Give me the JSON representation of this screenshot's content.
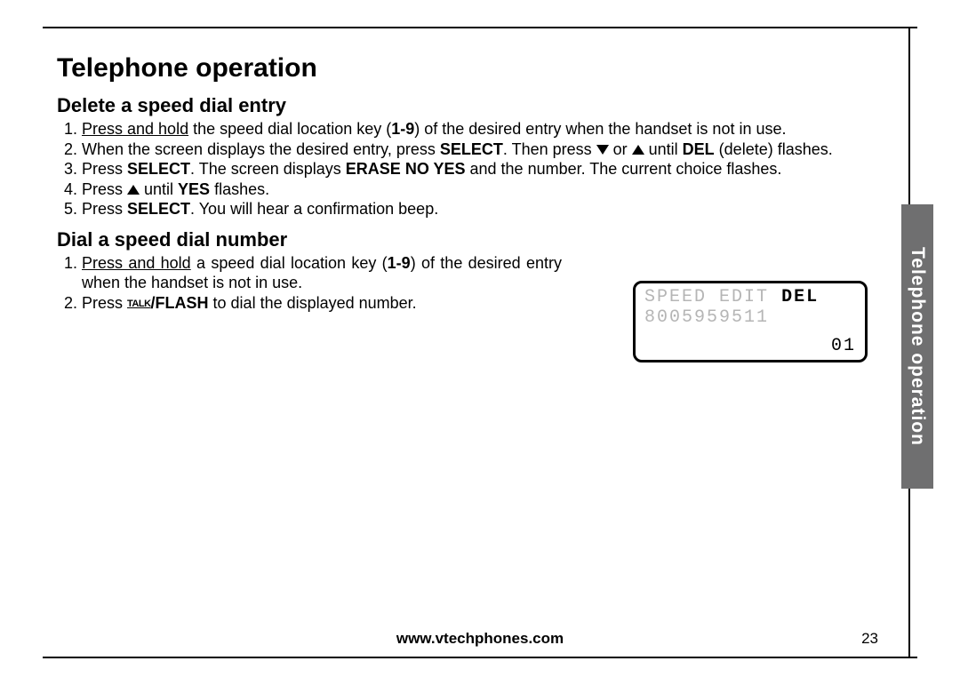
{
  "page": {
    "title": "Telephone operation",
    "side_tab": "Telephone operation",
    "footer_url": "www.vtechphones.com",
    "page_number": "23"
  },
  "section_delete": {
    "title": "Delete a speed dial entry",
    "step1_a": "Press and hold",
    "step1_b": " the speed dial location key (",
    "step1_c": "1-9",
    "step1_d": ") of the desired entry when the handset is not in use.",
    "step2_a": "When the screen displays the desired entry, press ",
    "step2_b": "SELECT",
    "step2_c": ". Then press ",
    "step2_d": " or ",
    "step2_e": " until ",
    "step2_f": "DEL",
    "step2_g": " (delete) flashes.",
    "step3_a": "Press ",
    "step3_b": "SELECT",
    "step3_c": ". The screen displays ",
    "step3_d": "ERASE NO YES",
    "step3_e": " and the number. The current choice flashes.",
    "step4_a": "Press ",
    "step4_b": "  until ",
    "step4_c": "YES",
    "step4_d": " flashes.",
    "step5_a": "Press ",
    "step5_b": "SELECT",
    "step5_c": ". You will hear a confirmation beep."
  },
  "section_dial": {
    "title": "Dial a speed dial number",
    "step1_a": "Press and hold",
    "step1_b": " a speed dial location key (",
    "step1_c": "1-9",
    "step1_d": ") of the desired entry when the handset is not in use.",
    "step2_a": "Press ",
    "step2_talk": "TALK",
    "step2_b": "/FLASH",
    "step2_c": " to dial the displayed number."
  },
  "lcd": {
    "menu_speed": "SPEED",
    "menu_edit": "EDIT",
    "menu_del": "DEL",
    "number": "8005959511",
    "index": "01",
    "border_color": "#000000",
    "faded_color": "#b5b5b5",
    "active_color": "#000000",
    "font_family": "Courier New"
  },
  "colors": {
    "text": "#000000",
    "background": "#ffffff",
    "tab_background": "#6f6f70",
    "tab_text": "#ffffff"
  }
}
